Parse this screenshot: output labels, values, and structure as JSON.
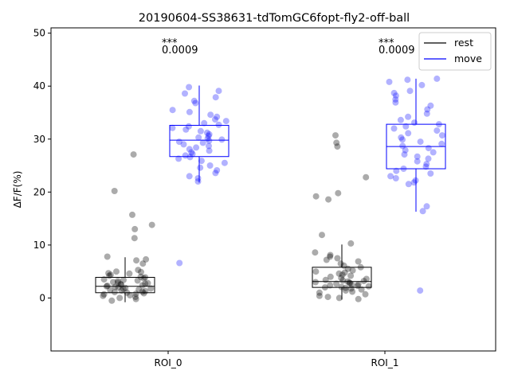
{
  "chart_data": {
    "type": "box-strip",
    "title": "20190604-SS38631-tdTomGC6fopt-fly2-off-ball",
    "ylabel": "ΔF/F(%)",
    "xlabel": "",
    "categories": [
      "ROI_0",
      "ROI_1"
    ],
    "ylim": [
      -10,
      51
    ],
    "yticks": [
      0,
      10,
      20,
      30,
      40,
      50
    ],
    "grid": false,
    "legend": {
      "placement": "top-right",
      "entries": [
        "rest",
        "move"
      ]
    },
    "colors": {
      "rest": "#000000",
      "move": "#0000ff"
    },
    "series": [
      {
        "name": "rest",
        "boxes": [
          {
            "category": "ROI_0",
            "whisker_low": -0.8,
            "q1": 1.0,
            "median": 2.2,
            "q3": 3.9,
            "whisker_high": 7.7
          },
          {
            "category": "ROI_1",
            "whisker_low": -0.3,
            "q1": 2.0,
            "median": 3.1,
            "q3": 5.8,
            "whisker_high": 10.1
          }
        ],
        "points": [
          [
            27.1,
            20.2,
            15.7,
            13.8,
            13.0,
            11.3,
            7.8,
            7.3,
            7.1,
            6.5,
            5.3,
            5.0,
            4.9,
            4.7,
            4.6,
            4.4,
            4.2,
            4.0,
            3.9,
            3.7,
            3.5,
            3.4,
            3.3,
            3.2,
            3.0,
            2.9,
            2.8,
            2.7,
            2.6,
            2.5,
            2.4,
            2.3,
            2.2,
            2.1,
            2.0,
            1.9,
            1.8,
            1.7,
            1.6,
            1.5,
            1.4,
            1.3,
            1.2,
            1.1,
            1.0,
            0.9,
            0.8,
            0.7,
            0.5,
            0.4,
            0.2,
            0.0,
            -0.2,
            -0.5
          ],
          [
            30.7,
            29.3,
            28.6,
            22.8,
            19.8,
            19.2,
            18.6,
            11.9,
            10.3,
            8.6,
            8.1,
            7.8,
            7.5,
            7.2,
            6.9,
            6.5,
            6.1,
            5.8,
            5.5,
            5.2,
            5.0,
            4.8,
            4.6,
            4.4,
            4.2,
            4.0,
            3.8,
            3.6,
            3.4,
            3.3,
            3.2,
            3.1,
            3.0,
            2.9,
            2.8,
            2.7,
            2.6,
            2.5,
            2.4,
            2.3,
            2.2,
            2.1,
            2.0,
            1.9,
            1.8,
            1.6,
            1.4,
            1.2,
            1.0,
            0.7,
            0.4,
            0.2,
            0.0,
            -0.2
          ]
        ]
      },
      {
        "name": "move",
        "boxes": [
          {
            "category": "ROI_0",
            "whisker_low": 21.8,
            "q1": 26.7,
            "median": 29.8,
            "q3": 32.6,
            "whisker_high": 40.1
          },
          {
            "category": "ROI_1",
            "whisker_low": 16.3,
            "q1": 24.4,
            "median": 28.6,
            "q3": 32.8,
            "whisker_high": 41.4
          }
        ],
        "points": [
          [
            39.8,
            39.1,
            38.6,
            37.9,
            37.2,
            36.8,
            35.5,
            35.1,
            34.6,
            34.2,
            33.7,
            33.4,
            33.0,
            32.7,
            32.4,
            32.1,
            31.8,
            31.5,
            31.2,
            30.9,
            30.6,
            30.3,
            30.1,
            29.9,
            29.7,
            29.5,
            29.3,
            29.0,
            28.7,
            28.4,
            28.1,
            27.8,
            27.5,
            27.2,
            26.9,
            26.6,
            26.3,
            25.9,
            25.5,
            25.0,
            24.6,
            24.1,
            23.6,
            23.0,
            22.6,
            22.0,
            6.6
          ],
          [
            41.4,
            41.2,
            40.8,
            40.2,
            39.1,
            38.7,
            38.2,
            37.5,
            36.9,
            36.3,
            35.6,
            34.8,
            34.2,
            33.6,
            33.1,
            32.8,
            32.4,
            32.0,
            31.6,
            31.1,
            30.7,
            30.3,
            29.9,
            29.5,
            29.1,
            28.7,
            28.3,
            27.9,
            27.5,
            27.1,
            26.7,
            26.3,
            25.8,
            25.3,
            24.8,
            24.4,
            24.0,
            23.5,
            23.0,
            22.6,
            22.2,
            21.8,
            21.5,
            17.3,
            16.4,
            1.4
          ]
        ]
      }
    ],
    "annotations": [
      {
        "category": "ROI_0",
        "stars": "***",
        "pvalue": "0.0009"
      },
      {
        "category": "ROI_1",
        "stars": "***",
        "pvalue": "0.0009"
      }
    ]
  }
}
